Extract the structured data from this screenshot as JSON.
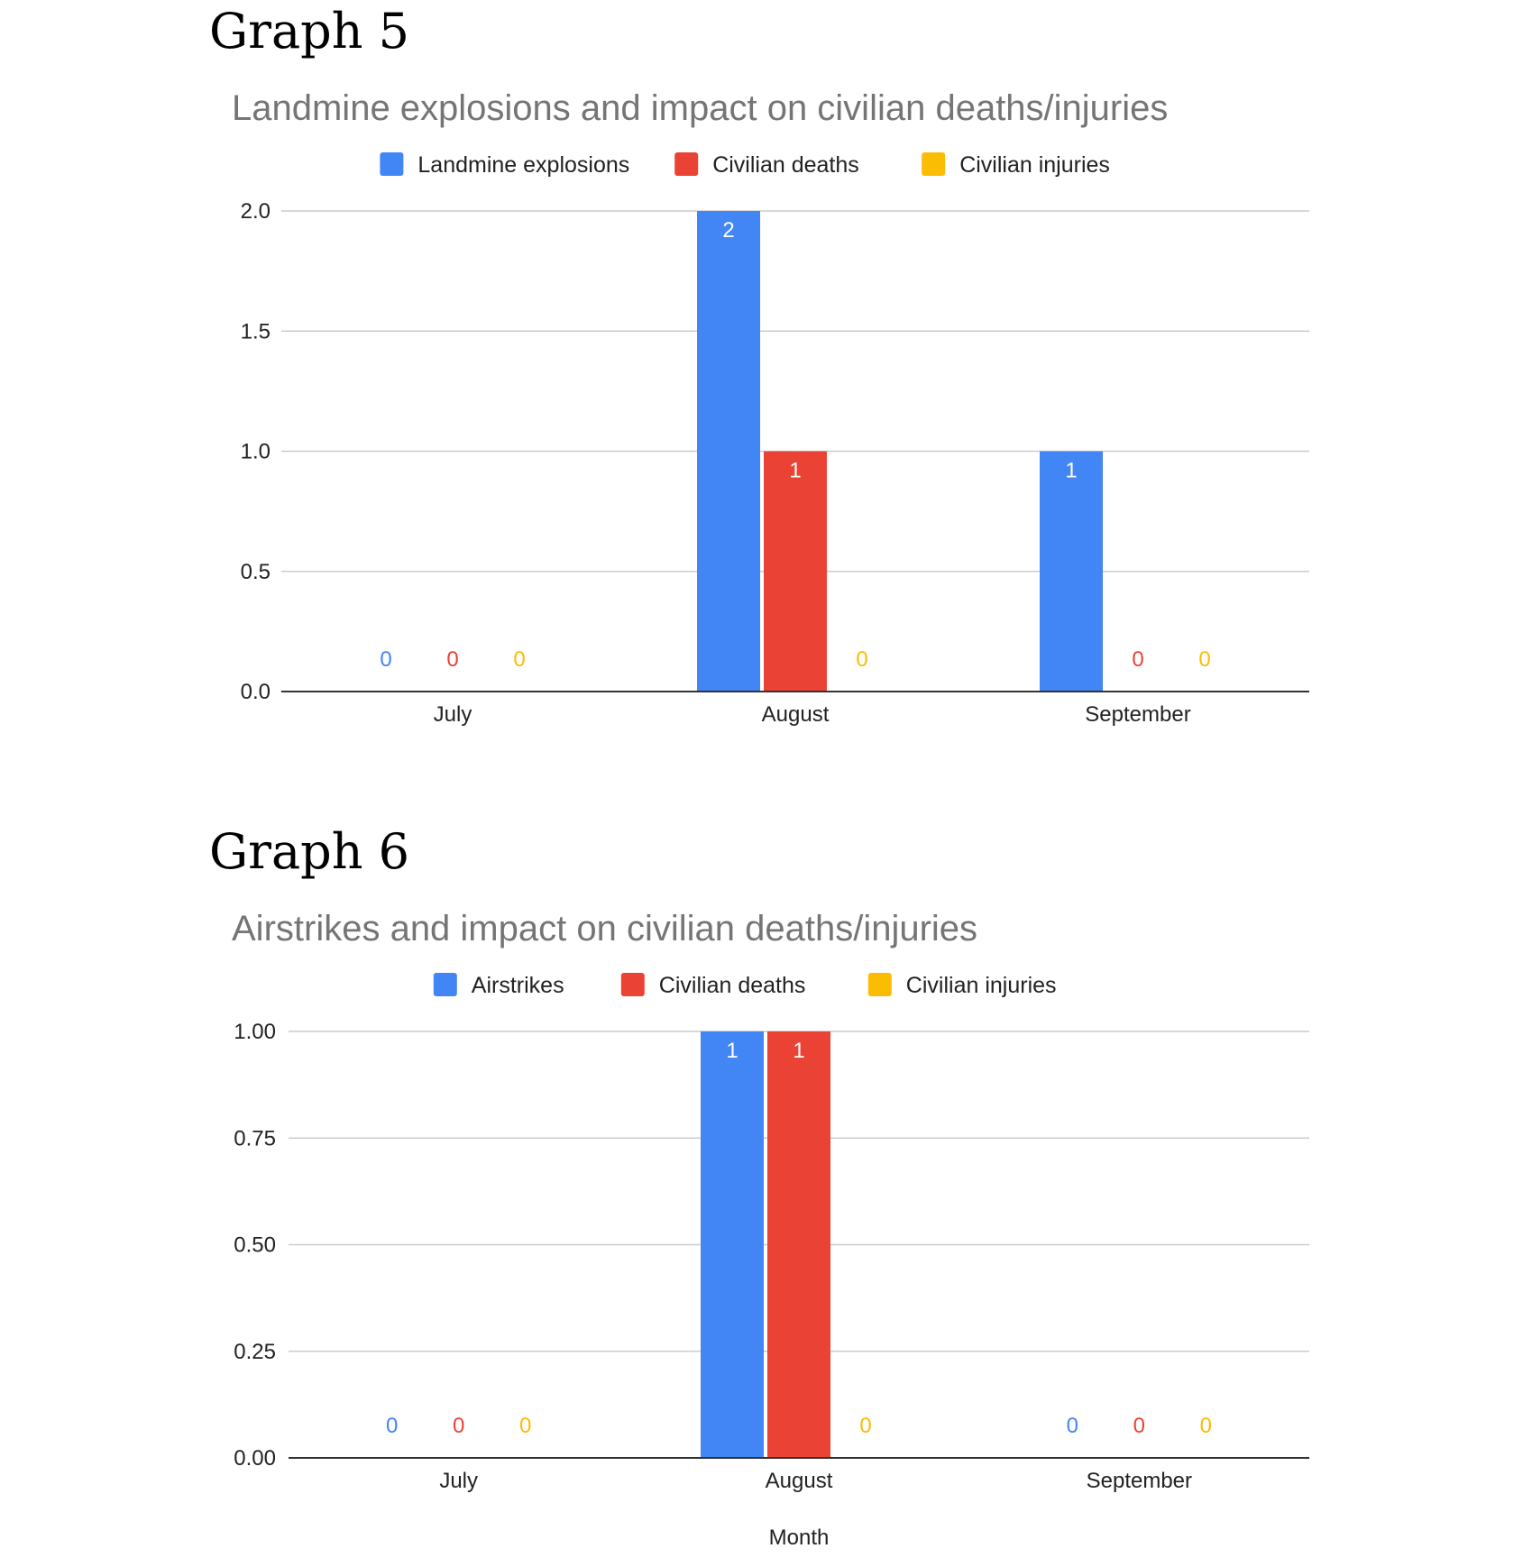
{
  "chart_data": [
    {
      "type": "bar",
      "heading": "Graph 5",
      "title": "Landmine explosions and impact on civilian deaths/injuries",
      "categories": [
        "July",
        "August",
        "September"
      ],
      "series": [
        {
          "name": "Landmine explosions",
          "color": "#4285F4",
          "values": [
            0,
            2,
            1
          ]
        },
        {
          "name": "Civilian deaths",
          "color": "#EA4335",
          "values": [
            0,
            1,
            0
          ]
        },
        {
          "name": "Civilian injuries",
          "color": "#FBBC04",
          "values": [
            0,
            0,
            0
          ]
        }
      ],
      "xlabel": "",
      "ylabel": "",
      "ylim": [
        0,
        2
      ],
      "yticks": [
        "2.0",
        "1.5",
        "1.0",
        "0.5",
        "0.0"
      ],
      "legend": "top",
      "grid": true
    },
    {
      "type": "bar",
      "heading": "Graph 6",
      "title": "Airstrikes and impact on civilian deaths/injuries",
      "categories": [
        "July",
        "August",
        "September"
      ],
      "series": [
        {
          "name": "Airstrikes",
          "color": "#4285F4",
          "values": [
            0,
            1,
            0
          ]
        },
        {
          "name": "Civilian deaths",
          "color": "#EA4335",
          "values": [
            0,
            1,
            0
          ]
        },
        {
          "name": "Civilian injuries",
          "color": "#FBBC04",
          "values": [
            0,
            0,
            0
          ]
        }
      ],
      "xlabel": "Month",
      "ylabel": "",
      "ylim": [
        0,
        1
      ],
      "yticks": [
        "1.00",
        "0.75",
        "0.50",
        "0.25",
        "0.00"
      ],
      "legend": "top",
      "grid": true
    }
  ]
}
